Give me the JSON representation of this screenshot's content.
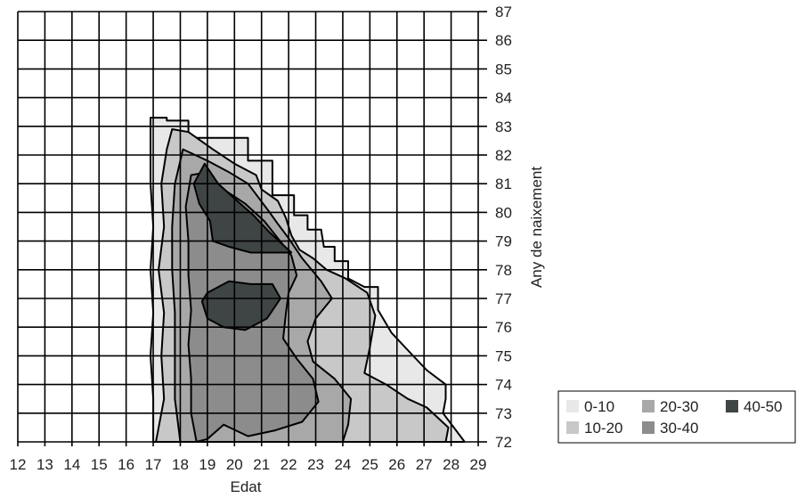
{
  "chart_data": {
    "type": "heatmap",
    "subtype": "filled-contour",
    "title": "",
    "xlabel": "Edat",
    "ylabel": "Any de naixement",
    "x_ticks": [
      12,
      13,
      14,
      15,
      16,
      17,
      18,
      19,
      20,
      21,
      22,
      23,
      24,
      25,
      26,
      27,
      28,
      29
    ],
    "y_ticks": [
      72,
      73,
      74,
      75,
      76,
      77,
      78,
      79,
      80,
      81,
      82,
      83,
      84,
      85,
      86,
      87
    ],
    "xlim": [
      12,
      29
    ],
    "ylim": [
      72,
      87
    ],
    "y_axis_position": "right",
    "grid": true,
    "legend_position": "bottom-right",
    "levels": [
      {
        "label": "0-10",
        "color": "#e8e8e8"
      },
      {
        "label": "10-20",
        "color": "#c8c8c8"
      },
      {
        "label": "20-30",
        "color": "#a8a8a8"
      },
      {
        "label": "30-40",
        "color": "#8c8c8c"
      },
      {
        "label": "40-50",
        "color": "#3f4545"
      }
    ],
    "regions": [
      {
        "level": "0-10",
        "points": [
          [
            17,
            72
          ],
          [
            17,
            73.5
          ],
          [
            16.9,
            75
          ],
          [
            17,
            76.5
          ],
          [
            16.9,
            78
          ],
          [
            17,
            79.5
          ],
          [
            16.9,
            81
          ],
          [
            16.9,
            82.5
          ],
          [
            16.9,
            83.3
          ],
          [
            17.5,
            83.3
          ],
          [
            17.5,
            83.2
          ],
          [
            18.3,
            83.2
          ],
          [
            18.3,
            82.6
          ],
          [
            19.6,
            82.6
          ],
          [
            20.5,
            82.6
          ],
          [
            20.5,
            81.8
          ],
          [
            21.4,
            81.8
          ],
          [
            21.4,
            81.2
          ],
          [
            21.4,
            80.6
          ],
          [
            22.2,
            80.6
          ],
          [
            22.2,
            79.9
          ],
          [
            22.7,
            79.9
          ],
          [
            22.7,
            79.4
          ],
          [
            23.2,
            79.4
          ],
          [
            23.3,
            78.8
          ],
          [
            23.7,
            78.8
          ],
          [
            23.7,
            78.3
          ],
          [
            24.2,
            78.3
          ],
          [
            24.2,
            77.7
          ],
          [
            24.8,
            77.4
          ],
          [
            25.3,
            77.4
          ],
          [
            25.3,
            76.6
          ],
          [
            25.8,
            75.8
          ],
          [
            26.4,
            75.2
          ],
          [
            27.1,
            74.5
          ],
          [
            27.8,
            74.0
          ],
          [
            27.8,
            73.5
          ],
          [
            27.7,
            73.0
          ],
          [
            28.5,
            72
          ]
        ]
      },
      {
        "level": "10-20",
        "points": [
          [
            17.1,
            72
          ],
          [
            17.4,
            73.5
          ],
          [
            17.3,
            75
          ],
          [
            17.4,
            76.5
          ],
          [
            17.2,
            78
          ],
          [
            17.4,
            79.5
          ],
          [
            17.3,
            81
          ],
          [
            17.5,
            82.2
          ],
          [
            17.7,
            82.9
          ],
          [
            18.3,
            82.8
          ],
          [
            19.2,
            82.2
          ],
          [
            20.0,
            81.7
          ],
          [
            20.8,
            81.3
          ],
          [
            21.0,
            80.8
          ],
          [
            21.6,
            80.4
          ],
          [
            21.9,
            79.8
          ],
          [
            22.1,
            79.2
          ],
          [
            22.4,
            78.7
          ],
          [
            22.9,
            78.4
          ],
          [
            23.4,
            78.0
          ],
          [
            24.1,
            77.7
          ],
          [
            24.9,
            77.2
          ],
          [
            25.2,
            76.4
          ],
          [
            25.0,
            75.3
          ],
          [
            24.8,
            74.4
          ],
          [
            25.6,
            74.0
          ],
          [
            26.4,
            73.5
          ],
          [
            27.1,
            73.2
          ],
          [
            27.9,
            72.5
          ],
          [
            27.8,
            72
          ]
        ]
      },
      {
        "level": "20-30",
        "points": [
          [
            18,
            72
          ],
          [
            17.8,
            73.5
          ],
          [
            17.8,
            75
          ],
          [
            17.8,
            76.5
          ],
          [
            17.7,
            78
          ],
          [
            17.7,
            79.5
          ],
          [
            17.8,
            81
          ],
          [
            18.1,
            82.2
          ],
          [
            19.0,
            81.8
          ],
          [
            19.8,
            81.4
          ],
          [
            20.5,
            81.0
          ],
          [
            20.9,
            80.5
          ],
          [
            21.3,
            80.0
          ],
          [
            21.6,
            79.6
          ],
          [
            22.0,
            79.1
          ],
          [
            22.5,
            78.4
          ],
          [
            23.2,
            77.6
          ],
          [
            23.6,
            77.0
          ],
          [
            23.0,
            76.3
          ],
          [
            22.7,
            75.5
          ],
          [
            22.9,
            74.8
          ],
          [
            23.7,
            74.2
          ],
          [
            24.3,
            73.5
          ],
          [
            24.2,
            72.6
          ],
          [
            24.0,
            72
          ]
        ]
      },
      {
        "level": "30-40",
        "points": [
          [
            18.6,
            72
          ],
          [
            18.4,
            73.0
          ],
          [
            18.4,
            74.2
          ],
          [
            18.3,
            75.4
          ],
          [
            18.4,
            76.6
          ],
          [
            18.3,
            77.8
          ],
          [
            18.3,
            79.0
          ],
          [
            18.2,
            80.2
          ],
          [
            18.4,
            81.3
          ],
          [
            19.0,
            81.4
          ],
          [
            19.6,
            80.8
          ],
          [
            20.4,
            80.3
          ],
          [
            21.1,
            79.7
          ],
          [
            21.6,
            79.1
          ],
          [
            22.1,
            78.5
          ],
          [
            22.3,
            77.8
          ],
          [
            22.0,
            77.2
          ],
          [
            21.9,
            76.5
          ],
          [
            21.8,
            75.6
          ],
          [
            22.3,
            74.9
          ],
          [
            22.9,
            74.2
          ],
          [
            23.1,
            73.4
          ],
          [
            22.5,
            72.7
          ],
          [
            21.5,
            72.4
          ],
          [
            20.5,
            72.2
          ],
          [
            19.6,
            72.6
          ],
          [
            19.0,
            72.1
          ]
        ]
      },
      {
        "level": "40-50",
        "points": [
          [
            18.9,
            81.7
          ],
          [
            18.5,
            81.0
          ],
          [
            18.7,
            80.3
          ],
          [
            19.1,
            79.7
          ],
          [
            19.2,
            79.0
          ],
          [
            19.8,
            78.8
          ],
          [
            20.6,
            78.6
          ],
          [
            21.2,
            78.6
          ],
          [
            22.1,
            78.6
          ],
          [
            21.3,
            79.3
          ],
          [
            20.7,
            79.9
          ],
          [
            20.1,
            80.4
          ],
          [
            19.4,
            81.0
          ]
        ]
      },
      {
        "level": "40-50",
        "points": [
          [
            19.0,
            77.2
          ],
          [
            19.8,
            77.6
          ],
          [
            20.6,
            77.5
          ],
          [
            21.4,
            77.5
          ],
          [
            21.7,
            77.0
          ],
          [
            21.2,
            76.3
          ],
          [
            20.4,
            75.9
          ],
          [
            19.6,
            76.0
          ],
          [
            19.0,
            76.3
          ],
          [
            18.8,
            76.9
          ]
        ]
      }
    ]
  }
}
